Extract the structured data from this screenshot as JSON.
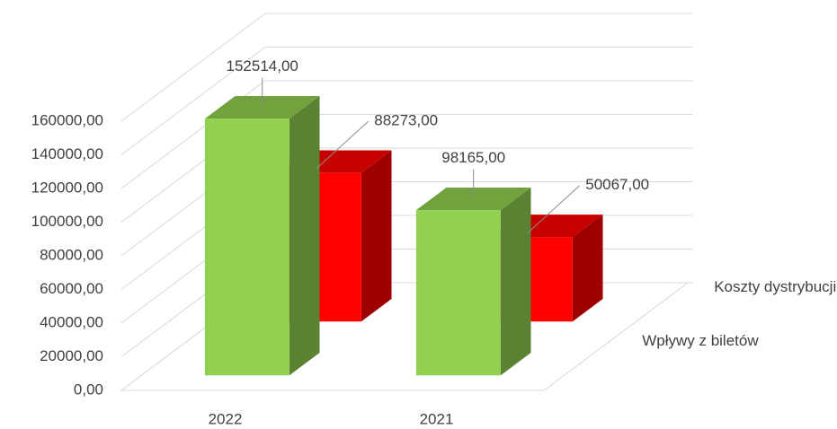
{
  "chart_data": {
    "type": "bar3d",
    "categories": [
      "2022",
      "2021"
    ],
    "series": [
      {
        "name": "Wpływy z biletów",
        "color": "#92d050",
        "values": [
          152514,
          98165
        ],
        "value_labels": [
          "152514,00",
          "98165,00"
        ]
      },
      {
        "name": "Koszty dystrybucji",
        "color": "#ff0000",
        "values": [
          88273,
          50067
        ],
        "value_labels": [
          "88273,00",
          "50067,00"
        ]
      }
    ],
    "ylim": [
      0,
      160000
    ],
    "yticks": [
      {
        "value": 0,
        "label": "0,00"
      },
      {
        "value": 20000,
        "label": "20000,00"
      },
      {
        "value": 40000,
        "label": "40000,00"
      },
      {
        "value": 60000,
        "label": "60000,00"
      },
      {
        "value": 80000,
        "label": "80000,00"
      },
      {
        "value": 100000,
        "label": "100000,00"
      },
      {
        "value": 120000,
        "label": "120000,00"
      },
      {
        "value": 140000,
        "label": "140000,00"
      },
      {
        "value": 160000,
        "label": "160000,00"
      }
    ],
    "grid": true
  }
}
